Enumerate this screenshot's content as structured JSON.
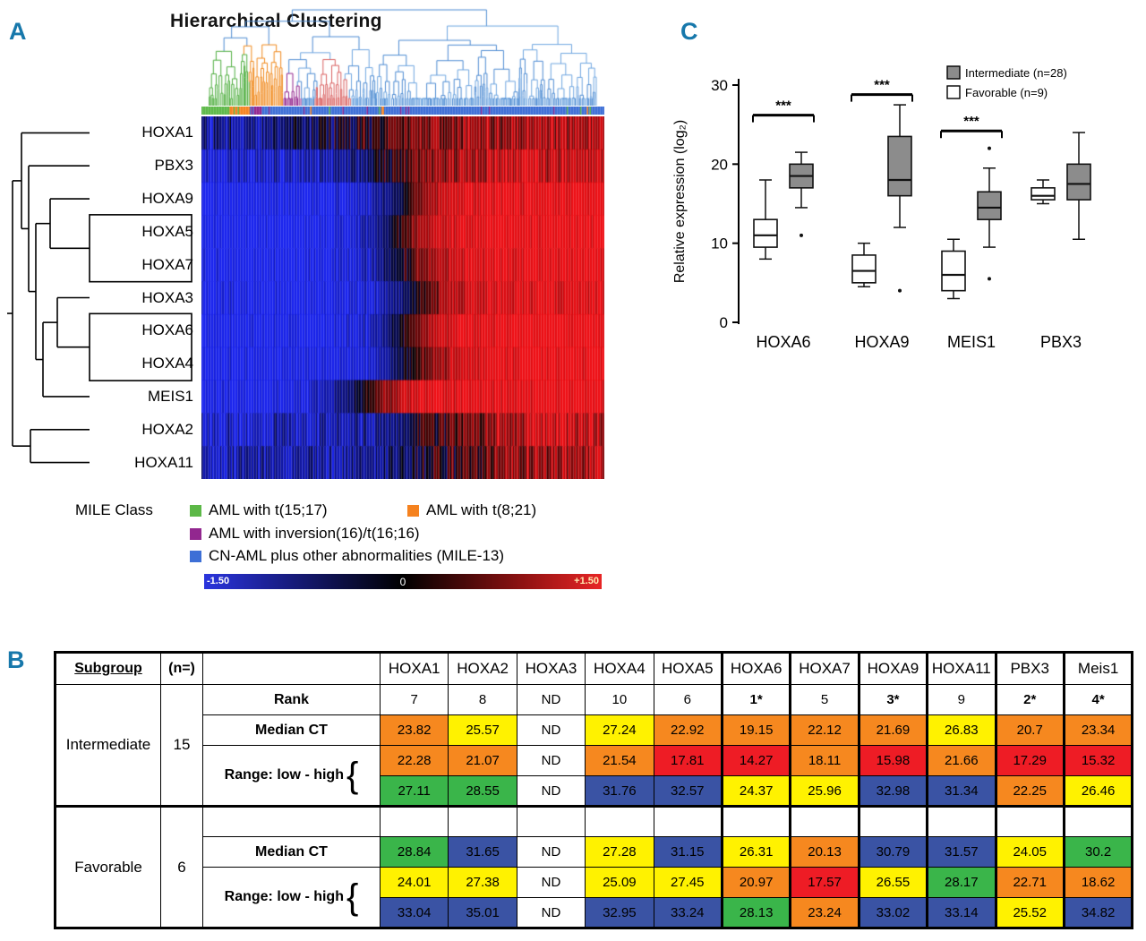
{
  "panelA": {
    "label": "A",
    "title": "Hierarchical Clustering",
    "rows": [
      "HOXA1",
      "PBX3",
      "HOXA9",
      "HOXA5",
      "HOXA7",
      "HOXA3",
      "HOXA6",
      "HOXA4",
      "MEIS1",
      "HOXA2",
      "HOXA11"
    ],
    "boxed_pairs": [
      [
        "HOXA5",
        "HOXA7"
      ],
      [
        "HOXA6",
        "HOXA4"
      ]
    ],
    "mile_class_label": "MILE Class",
    "legend": [
      {
        "label": "AML with t(15;17)",
        "color": "#5cb847"
      },
      {
        "label": "AML with t(8;21)",
        "color": "#f5821f"
      },
      {
        "label": "AML with inversion(16)/t(16;16)",
        "color": "#92278f"
      },
      {
        "label": "CN-AML plus other abnormalities (MILE-13)",
        "color": "#3d6fd6"
      }
    ],
    "colorbar": {
      "min": "-1.50",
      "mid": "0",
      "max": "+1.50",
      "min_color": "#2b35dd",
      "mid_color": "#000000",
      "max_color": "#e82525"
    }
  },
  "panelC": {
    "label": "C",
    "ylabel": "Relative expression (log₂)",
    "yticks": [
      "0",
      "10",
      "20",
      "30"
    ],
    "categories": [
      "HOXA6",
      "HOXA9",
      "MEIS1",
      "PBX3"
    ],
    "legend": [
      {
        "label": "Intermediate (n=28)",
        "fill": "#8c8c8c"
      },
      {
        "label": "Favorable (n=9)",
        "fill": "#ffffff"
      }
    ]
  },
  "chart_data": {
    "type": "boxplot",
    "categories": [
      "HOXA6",
      "HOXA9",
      "MEIS1",
      "PBX3"
    ],
    "ylabel": "Relative expression (log₂)",
    "ylim": [
      0,
      30
    ],
    "series": [
      {
        "name": "Favorable (n=9)",
        "fill": "#ffffff",
        "boxes": [
          {
            "low": 8,
            "q1": 9.5,
            "median": 11,
            "q3": 13,
            "high": 18,
            "outliers": []
          },
          {
            "low": 4.5,
            "q1": 5,
            "median": 6.5,
            "q3": 8.5,
            "high": 10,
            "outliers": []
          },
          {
            "low": 3,
            "q1": 4,
            "median": 6,
            "q3": 9,
            "high": 10.5,
            "outliers": []
          },
          {
            "low": 15,
            "q1": 15.5,
            "median": 16,
            "q3": 17,
            "high": 18,
            "outliers": []
          }
        ]
      },
      {
        "name": "Intermediate (n=28)",
        "fill": "#8c8c8c",
        "boxes": [
          {
            "low": 14.5,
            "q1": 17,
            "median": 18.5,
            "q3": 20,
            "high": 21.5,
            "outliers": [
              11
            ]
          },
          {
            "low": 12,
            "q1": 16,
            "median": 18,
            "q3": 23.5,
            "high": 27.5,
            "outliers": [
              4
            ]
          },
          {
            "low": 9.5,
            "q1": 13,
            "median": 14.5,
            "q3": 16.5,
            "high": 19.5,
            "outliers": [
              22,
              5.5
            ]
          },
          {
            "low": 10.5,
            "q1": 15.5,
            "median": 17.5,
            "q3": 20,
            "high": 24,
            "outliers": []
          }
        ]
      }
    ],
    "significance": [
      {
        "category": "HOXA6",
        "stars": "***",
        "bracket_y": 26.2
      },
      {
        "category": "HOXA9",
        "stars": "***",
        "bracket_y": 28.8
      },
      {
        "category": "MEIS1",
        "stars": "***",
        "bracket_y": 24.2
      }
    ],
    "legend_position": "top-right",
    "grid": false
  },
  "panelB": {
    "label": "B",
    "header": {
      "subgroup": "Subgroup",
      "n": "(n=)",
      "genes": [
        "HOXA1",
        "HOXA2",
        "HOXA3",
        "HOXA4",
        "HOXA5",
        "HOXA6",
        "HOXA7",
        "HOXA9",
        "HOXA11",
        "PBX3",
        "Meis1"
      ]
    },
    "highlight_columns": [
      "HOXA6",
      "HOXA9",
      "PBX3",
      "Meis1"
    ],
    "row_labels": {
      "rank": "Rank",
      "median": "Median CT",
      "range": "Range: low - high",
      "brace": "{"
    },
    "colors": {
      "r": "#ee1c25",
      "o": "#f6881f",
      "y": "#fff200",
      "g": "#3ab54a",
      "b": "#3a53a4",
      "w": "#ffffff"
    },
    "blocks": [
      {
        "subgroup": "Intermediate",
        "n": "15",
        "rows": [
          {
            "kind": "rank",
            "cells": [
              [
                "7",
                "w"
              ],
              [
                "8",
                "w"
              ],
              [
                "ND",
                "w"
              ],
              [
                "10",
                "w"
              ],
              [
                "6",
                "w"
              ],
              [
                "1*",
                "w",
                "bold"
              ],
              [
                "5",
                "w"
              ],
              [
                "3*",
                "w",
                "bold"
              ],
              [
                "9",
                "w"
              ],
              [
                "2*",
                "w",
                "bold"
              ],
              [
                "4*",
                "w",
                "bold"
              ]
            ]
          },
          {
            "kind": "median",
            "cells": [
              [
                "23.82",
                "o"
              ],
              [
                "25.57",
                "y"
              ],
              [
                "ND",
                "w"
              ],
              [
                "27.24",
                "y"
              ],
              [
                "22.92",
                "o"
              ],
              [
                "19.15",
                "o"
              ],
              [
                "22.12",
                "o"
              ],
              [
                "21.69",
                "o"
              ],
              [
                "26.83",
                "y"
              ],
              [
                "20.7",
                "o"
              ],
              [
                "23.34",
                "o"
              ]
            ]
          },
          {
            "kind": "range_low",
            "cells": [
              [
                "22.28",
                "o"
              ],
              [
                "21.07",
                "o"
              ],
              [
                "ND",
                "w"
              ],
              [
                "21.54",
                "o"
              ],
              [
                "17.81",
                "r"
              ],
              [
                "14.27",
                "r"
              ],
              [
                "18.11",
                "o"
              ],
              [
                "15.98",
                "r"
              ],
              [
                "21.66",
                "o"
              ],
              [
                "17.29",
                "r"
              ],
              [
                "15.32",
                "r"
              ]
            ]
          },
          {
            "kind": "range_high",
            "cells": [
              [
                "27.11",
                "g"
              ],
              [
                "28.55",
                "g"
              ],
              [
                "ND",
                "w"
              ],
              [
                "31.76",
                "b"
              ],
              [
                "32.57",
                "b"
              ],
              [
                "24.37",
                "y"
              ],
              [
                "25.96",
                "y"
              ],
              [
                "32.98",
                "b"
              ],
              [
                "31.34",
                "b"
              ],
              [
                "22.25",
                "o"
              ],
              [
                "26.46",
                "y"
              ]
            ]
          }
        ]
      },
      {
        "subgroup": "Favorable",
        "n": "6",
        "rows": [
          {
            "kind": "empty",
            "cells": [
              [
                "",
                "w"
              ],
              [
                "",
                "w"
              ],
              [
                "",
                "w"
              ],
              [
                "",
                "w"
              ],
              [
                "",
                "w"
              ],
              [
                "",
                "w"
              ],
              [
                "",
                "w"
              ],
              [
                "",
                "w"
              ],
              [
                "",
                "w"
              ],
              [
                "",
                "w"
              ],
              [
                "",
                "w"
              ]
            ]
          },
          {
            "kind": "median",
            "cells": [
              [
                "28.84",
                "g"
              ],
              [
                "31.65",
                "b"
              ],
              [
                "ND",
                "w"
              ],
              [
                "27.28",
                "y"
              ],
              [
                "31.15",
                "b"
              ],
              [
                "26.31",
                "y"
              ],
              [
                "20.13",
                "o"
              ],
              [
                "30.79",
                "b"
              ],
              [
                "31.57",
                "b"
              ],
              [
                "24.05",
                "y"
              ],
              [
                "30.2",
                "g"
              ]
            ]
          },
          {
            "kind": "range_low",
            "cells": [
              [
                "24.01",
                "y"
              ],
              [
                "27.38",
                "y"
              ],
              [
                "ND",
                "w"
              ],
              [
                "25.09",
                "y"
              ],
              [
                "27.45",
                "y"
              ],
              [
                "20.97",
                "o"
              ],
              [
                "17.57",
                "r"
              ],
              [
                "26.55",
                "y"
              ],
              [
                "28.17",
                "g"
              ],
              [
                "22.71",
                "o"
              ],
              [
                "18.62",
                "o"
              ]
            ]
          },
          {
            "kind": "range_high",
            "cells": [
              [
                "33.04",
                "b"
              ],
              [
                "35.01",
                "b"
              ],
              [
                "ND",
                "w"
              ],
              [
                "32.95",
                "b"
              ],
              [
                "33.24",
                "b"
              ],
              [
                "28.13",
                "g"
              ],
              [
                "23.24",
                "o"
              ],
              [
                "33.02",
                "b"
              ],
              [
                "33.14",
                "b"
              ],
              [
                "25.52",
                "y"
              ],
              [
                "34.82",
                "b"
              ]
            ]
          }
        ]
      }
    ]
  }
}
